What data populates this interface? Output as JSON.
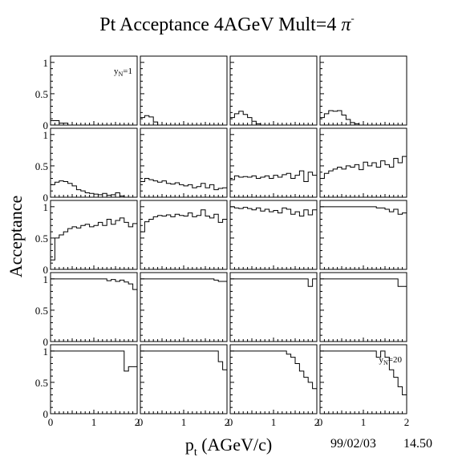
{
  "chart_data": {
    "type": "step-histogram-grid",
    "title": "Pt Acceptance 4AGeV Mult=4",
    "title_symbol": "π",
    "title_superscript": "-",
    "xlabel_main": "p",
    "xlabel_sub": "t",
    "xlabel_rest": " (AGeV/c)",
    "ylabel": "Acceptance",
    "footer_date": "99/02/03",
    "footer_time": "14.50",
    "xlim": [
      0,
      2
    ],
    "ylim": [
      0,
      1.1
    ],
    "x_ticks": [
      "0",
      "1",
      "2"
    ],
    "y_ticks": [
      "0",
      "0.5",
      "1"
    ],
    "grid": false,
    "bin_width": 0.1,
    "panel_labels": [
      {
        "panel": 0,
        "main": "y",
        "sub": "N",
        "rest": "=1"
      },
      {
        "panel": 19,
        "main": "y",
        "sub": "N",
        "rest": "=20"
      }
    ],
    "panels": [
      [
        0.07,
        0.07,
        0.03,
        0.03,
        0,
        0,
        0,
        0,
        0,
        0,
        0,
        0,
        0,
        0,
        0,
        0,
        0,
        0,
        0,
        0
      ],
      [
        0.12,
        0.15,
        0.13,
        0.05,
        0,
        0,
        0,
        0,
        0,
        0,
        0,
        0,
        0,
        0,
        0,
        0,
        0,
        0,
        0,
        0
      ],
      [
        0.12,
        0.18,
        0.22,
        0.17,
        0.12,
        0.06,
        0.02,
        0,
        0,
        0,
        0,
        0,
        0,
        0,
        0,
        0,
        0,
        0,
        0,
        0
      ],
      [
        0.12,
        0.18,
        0.23,
        0.22,
        0.23,
        0.16,
        0.09,
        0.04,
        0.02,
        0,
        0,
        0,
        0,
        0,
        0,
        0,
        0,
        0,
        0,
        0
      ],
      [
        0.2,
        0.24,
        0.26,
        0.25,
        0.22,
        0.18,
        0.12,
        0.1,
        0.07,
        0.06,
        0.05,
        0.04,
        0.06,
        0.03,
        0.04,
        0.07,
        0.02,
        0,
        0,
        0
      ],
      [
        0.25,
        0.3,
        0.28,
        0.26,
        0.24,
        0.26,
        0.22,
        0.21,
        0.23,
        0.2,
        0.18,
        0.2,
        0.15,
        0.17,
        0.22,
        0.15,
        0.2,
        0.12,
        0.14,
        0.15
      ],
      [
        0.28,
        0.34,
        0.32,
        0.33,
        0.32,
        0.34,
        0.3,
        0.32,
        0.34,
        0.3,
        0.35,
        0.32,
        0.36,
        0.38,
        0.3,
        0.35,
        0.42,
        0.25,
        0.4,
        0.35
      ],
      [
        0.3,
        0.38,
        0.42,
        0.45,
        0.48,
        0.45,
        0.5,
        0.48,
        0.52,
        0.44,
        0.56,
        0.5,
        0.55,
        0.48,
        0.58,
        0.52,
        0.48,
        0.62,
        0.55,
        0.65
      ],
      [
        0.15,
        0.5,
        0.55,
        0.6,
        0.65,
        0.68,
        0.66,
        0.7,
        0.72,
        0.68,
        0.7,
        0.75,
        0.7,
        0.8,
        0.72,
        0.78,
        0.82,
        0.75,
        0.68,
        0.73
      ],
      [
        0.6,
        0.76,
        0.8,
        0.84,
        0.86,
        0.85,
        0.87,
        0.84,
        0.88,
        0.86,
        0.85,
        0.9,
        0.84,
        0.86,
        0.95,
        0.85,
        0.82,
        0.88,
        0.75,
        0.8
      ],
      [
        1.0,
        0.98,
        0.97,
        0.99,
        0.97,
        0.95,
        0.98,
        0.93,
        0.96,
        0.92,
        0.94,
        0.9,
        0.98,
        0.96,
        0.88,
        0.92,
        0.85,
        0.95,
        0.87,
        0.95
      ],
      [
        1.0,
        1.0,
        1.0,
        1.0,
        1.0,
        1.0,
        1.0,
        1.0,
        1.0,
        1.0,
        1.0,
        1.0,
        1.0,
        0.98,
        0.98,
        0.96,
        0.92,
        0.96,
        0.88,
        0.9
      ],
      [
        1.0,
        1.0,
        1.0,
        1.0,
        1.0,
        1.0,
        1.0,
        1.0,
        1.0,
        1.0,
        1.0,
        1.0,
        1.0,
        0.97,
        0.99,
        0.96,
        0.98,
        0.95,
        0.92,
        0.83
      ],
      [
        1.0,
        1.0,
        1.0,
        1.0,
        1.0,
        1.0,
        1.0,
        1.0,
        1.0,
        1.0,
        1.0,
        1.0,
        1.0,
        1.0,
        1.0,
        1.0,
        1.0,
        0.98,
        0.96,
        0.96
      ],
      [
        1.0,
        1.0,
        1.0,
        1.0,
        1.0,
        1.0,
        1.0,
        1.0,
        1.0,
        1.0,
        1.0,
        1.0,
        1.0,
        1.0,
        1.0,
        1.0,
        1.0,
        1.0,
        0.88,
        1.0
      ],
      [
        1.0,
        1.0,
        1.0,
        1.0,
        1.0,
        1.0,
        1.0,
        1.0,
        1.0,
        1.0,
        1.0,
        1.0,
        1.0,
        1.0,
        1.0,
        1.0,
        1.0,
        1.0,
        0.88,
        0.88
      ],
      [
        1.0,
        1.0,
        1.0,
        1.0,
        1.0,
        1.0,
        1.0,
        1.0,
        1.0,
        1.0,
        1.0,
        1.0,
        1.0,
        1.0,
        1.0,
        1.0,
        1.0,
        0.68,
        0.75,
        0.75
      ],
      [
        1.0,
        1.0,
        1.0,
        1.0,
        1.0,
        1.0,
        1.0,
        1.0,
        1.0,
        1.0,
        1.0,
        1.0,
        1.0,
        1.0,
        1.0,
        1.0,
        1.0,
        1.0,
        0.83,
        0.7
      ],
      [
        1.0,
        1.0,
        1.0,
        1.0,
        1.0,
        1.0,
        1.0,
        1.0,
        1.0,
        1.0,
        1.0,
        1.0,
        1.0,
        0.95,
        0.9,
        0.8,
        0.68,
        0.58,
        0.5,
        0.4
      ],
      [
        1.0,
        1.0,
        1.0,
        1.0,
        1.0,
        1.0,
        1.0,
        1.0,
        1.0,
        1.0,
        1.0,
        1.0,
        1.0,
        0.9,
        1.0,
        0.9,
        0.7,
        0.58,
        0.43,
        0.3
      ]
    ]
  }
}
